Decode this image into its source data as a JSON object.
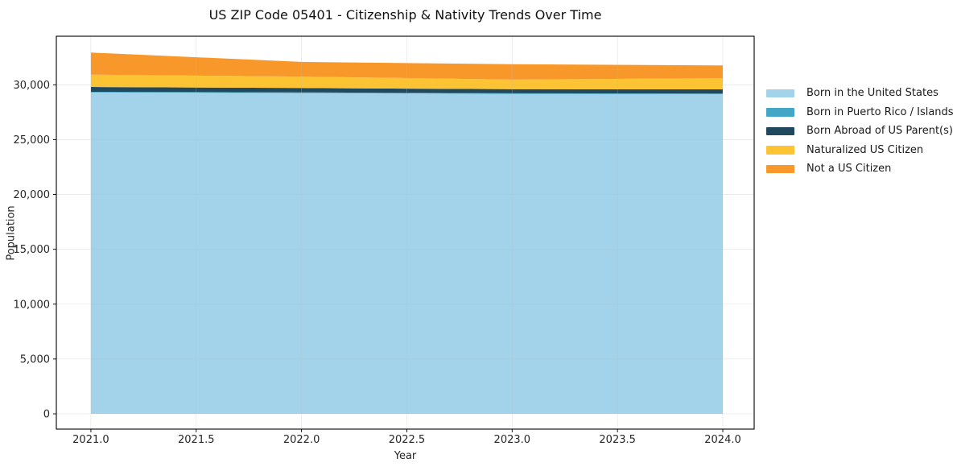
{
  "chart_data": {
    "type": "area",
    "title": "US ZIP Code 05401 - Citizenship & Nativity Trends Over Time",
    "xlabel": "Year",
    "ylabel": "Population",
    "x": [
      2021,
      2022,
      2023,
      2024
    ],
    "series": [
      {
        "name": "Born in the United States",
        "color": "#a2d3ea",
        "values": [
          29300,
          29250,
          29170,
          29150
        ]
      },
      {
        "name": "Born in Puerto Rico / Islands",
        "color": "#43a6c6",
        "values": [
          60,
          60,
          50,
          50
        ]
      },
      {
        "name": "Born Abroad of US Parent(s)",
        "color": "#21495e",
        "values": [
          440,
          400,
          380,
          380
        ]
      },
      {
        "name": "Naturalized US Citizen",
        "color": "#fcc332",
        "values": [
          1130,
          1040,
          870,
          1020
        ]
      },
      {
        "name": "Not a US Citizen",
        "color": "#f8982b",
        "values": [
          2010,
          1340,
          1400,
          1160
        ]
      }
    ],
    "totals": [
      32940,
      32090,
      31870,
      31760
    ],
    "xlim": [
      2020.836,
      2024.149
    ],
    "ylim": [
      -1394,
      34428
    ],
    "x_ticks": {
      "values": [
        2021.0,
        2021.5,
        2022.0,
        2022.5,
        2023.0,
        2023.5,
        2024.0
      ],
      "labels": [
        "2021.0",
        "2021.5",
        "2022.0",
        "2022.5",
        "2023.0",
        "2023.5",
        "2024.0"
      ]
    },
    "y_ticks": {
      "values": [
        0,
        5000,
        10000,
        15000,
        20000,
        25000,
        30000
      ],
      "labels": [
        "0",
        "5,000",
        "10,000",
        "15,000",
        "20,000",
        "25,000",
        "30,000"
      ]
    },
    "grid": true,
    "legend_position": "right-outside",
    "colors": {
      "spine": "#000000",
      "tick_text": "#262626",
      "grid": "#bbbbbb"
    }
  }
}
